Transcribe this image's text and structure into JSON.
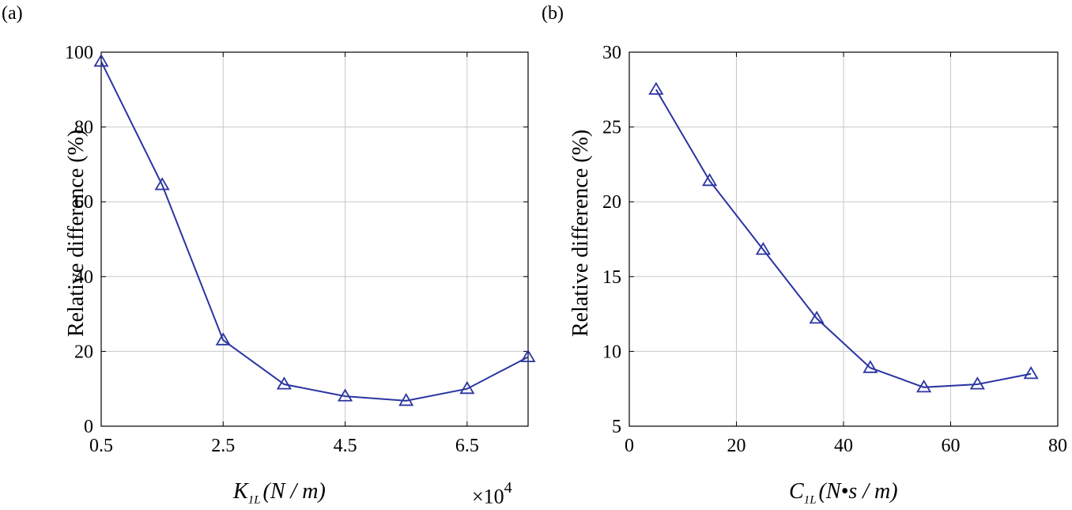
{
  "colors": {
    "series": "#2b35a0"
  },
  "chart_data": [
    {
      "panel": "(a)",
      "type": "line",
      "x": [
        0.5,
        1.5,
        2.5,
        3.5,
        4.5,
        5.5,
        6.5,
        7.5
      ],
      "y": [
        97.5,
        64.5,
        23,
        11.2,
        8,
        6.8,
        10,
        18.5
      ],
      "xlim": [
        0.5,
        7.5
      ],
      "ylim": [
        0,
        100
      ],
      "xticks": [
        0.5,
        2.5,
        4.5,
        6.5
      ],
      "xticklabels": [
        "0.5",
        "2.5",
        "4.5",
        "6.5"
      ],
      "yticks": [
        0,
        20,
        40,
        60,
        80,
        100
      ],
      "yticklabels": [
        "0",
        "20",
        "40",
        "60",
        "80",
        "100"
      ],
      "xlabel_symbol": "K",
      "xlabel_subscript": "1L",
      "xlabel_unit": "(N / m)",
      "x_multiplier_base": "×10",
      "x_multiplier_exp": "4",
      "ylabel": "Relative difference (%)",
      "marker": "triangle",
      "grid": true
    },
    {
      "panel": "(b)",
      "type": "line",
      "x": [
        5,
        15,
        25,
        35,
        45,
        55,
        65,
        75
      ],
      "y": [
        27.5,
        21.4,
        16.8,
        12.2,
        8.9,
        7.6,
        7.8,
        8.5
      ],
      "xlim": [
        0,
        80
      ],
      "ylim": [
        5,
        30
      ],
      "xticks": [
        0,
        20,
        40,
        60,
        80
      ],
      "xticklabels": [
        "0",
        "20",
        "40",
        "60",
        "80"
      ],
      "yticks": [
        5,
        10,
        15,
        20,
        25,
        30
      ],
      "yticklabels": [
        "5",
        "10",
        "15",
        "20",
        "25",
        "30"
      ],
      "xlabel_symbol": "C",
      "xlabel_subscript": "1L",
      "xlabel_unit": "(N•s / m)",
      "ylabel": "Relative difference (%)",
      "marker": "triangle",
      "grid": true
    }
  ]
}
